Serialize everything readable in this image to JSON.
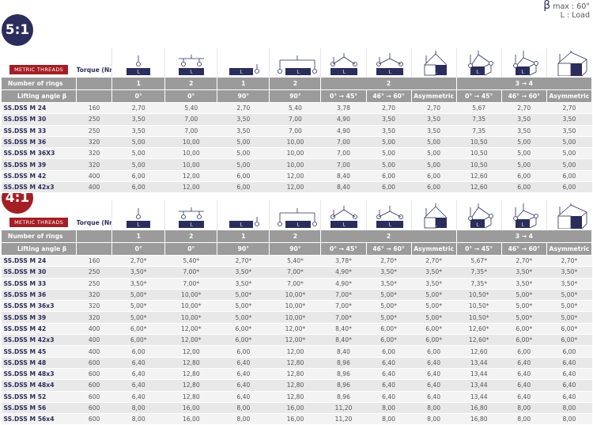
{
  "legend": {
    "beta_symbol": "β",
    "beta_max": "max : 60°",
    "load": "L : Load"
  },
  "colors": {
    "navy": "#2b2d5c",
    "red": "#a31f25",
    "header_gray": "#9b9b9b"
  },
  "icon_names": [
    "single-ring-vertical-icon",
    "two-rings-vertical-icon",
    "single-ring-side-icon",
    "two-rings-side-icon",
    "two-rings-angle-0-45-icon",
    "two-rings-angle-46-60-icon",
    "two-rings-asymmetric-icon",
    "four-rings-angle-0-45-icon",
    "four-rings-angle-46-60-icon",
    "four-rings-asymmetric-icon"
  ],
  "load_label": "L",
  "tables": [
    {
      "ratio": "5:1",
      "threads_label": "METRIC THREADS",
      "torque_label": "Torque (Nm)",
      "rings_label": "Number of rings",
      "angle_label": "Lifting angle β",
      "rings": [
        "1",
        "2",
        "1",
        "2",
        "2",
        "3 → 4"
      ],
      "angles": [
        "0°",
        "0°",
        "90°",
        "90°",
        "0° → 45°",
        "46° → 60°",
        "Asymmetric",
        "0° → 45°",
        "46° → 60°",
        "Asymmetric"
      ],
      "rows": [
        [
          "SS.DSS M 24",
          "160",
          "2,70",
          "5,40",
          "2,70",
          "5,40",
          "3,78",
          "2,70",
          "2,70",
          "5,67",
          "2,70",
          "2,70"
        ],
        [
          "SS.DSS M 30",
          "250",
          "3,50",
          "7,00",
          "3,50",
          "7,00",
          "4,90",
          "3,50",
          "3,50",
          "7,35",
          "3,50",
          "3,50"
        ],
        [
          "SS.DSS M 33",
          "250",
          "3,50",
          "7,00",
          "3,50",
          "7,00",
          "4,90",
          "3,50",
          "3,50",
          "7,35",
          "3,50",
          "3,50"
        ],
        [
          "SS.DSS M 36",
          "320",
          "5,00",
          "10,00",
          "5,00",
          "10,00",
          "7,00",
          "5,00",
          "5,00",
          "10,50",
          "5,00",
          "5,00"
        ],
        [
          "SS.DSS M 36X3",
          "320",
          "5,00",
          "10,00",
          "5,00",
          "10,00",
          "7,00",
          "5,00",
          "5,00",
          "10,50",
          "5,00",
          "5,00"
        ],
        [
          "SS.DSS M 39",
          "320",
          "5,00",
          "10,00",
          "5,00",
          "10,00",
          "7,00",
          "5,00",
          "5,00",
          "10,50",
          "5,00",
          "5,00"
        ],
        [
          "SS.DSS M 42",
          "400",
          "6,00",
          "12,00",
          "6,00",
          "12,00",
          "8,40",
          "6,00",
          "6,00",
          "12,60",
          "6,00",
          "6,00"
        ],
        [
          "SS.DSS M 42x3",
          "400",
          "6,00",
          "12,00",
          "6,00",
          "12,00",
          "8,40",
          "6,00",
          "6,00",
          "12,60",
          "6,00",
          "6,00"
        ]
      ]
    },
    {
      "ratio": "4:1",
      "threads_label": "METRIC THREADS",
      "torque_label": "Torque (Nm)",
      "rings_label": "Number of rings",
      "angle_label": "Lifting angle β",
      "rings": [
        "1",
        "2",
        "1",
        "2",
        "2",
        "3 → 4"
      ],
      "angles": [
        "0°",
        "0°",
        "90°",
        "90°",
        "0° → 45°",
        "46° → 60°",
        "Asymmetric",
        "0° → 45°",
        "46° → 60°",
        "Asymmetric"
      ],
      "rows": [
        [
          "SS.DSS M 24",
          "160",
          "2,70*",
          "5,40*",
          "2,70*",
          "5,40*",
          "3,78*",
          "2,70*",
          "2,70*",
          "5,67*",
          "2,70*",
          "2,70*"
        ],
        [
          "SS.DSS M 30",
          "250",
          "3,50*",
          "7,00*",
          "3,50*",
          "7,00*",
          "4,90*",
          "3,50*",
          "3,50*",
          "7,35*",
          "3,50*",
          "3,50*"
        ],
        [
          "SS.DSS M 33",
          "250",
          "3,50*",
          "7,00*",
          "3,50*",
          "7,00*",
          "4,90*",
          "3,50*",
          "3,50*",
          "7,35*",
          "3,50*",
          "3,50*"
        ],
        [
          "SS.DSS M 36",
          "320",
          "5,00*",
          "10,00*",
          "5,00*",
          "10,00*",
          "7,00*",
          "5,00*",
          "5,00*",
          "10,50*",
          "5,00*",
          "5,00*"
        ],
        [
          "SS.DSS M 36x3",
          "320",
          "5,00*",
          "10,00*",
          "5,00*",
          "10,00*",
          "7,00*",
          "5,00*",
          "5,00*",
          "10,50*",
          "5,00*",
          "5,00*"
        ],
        [
          "SS.DSS M 39",
          "320",
          "5,00*",
          "10,00*",
          "5,00*",
          "10,00*",
          "7,00*",
          "5,00*",
          "5,00*",
          "10,50*",
          "5,00*",
          "5,00*"
        ],
        [
          "SS.DSS M 42",
          "400",
          "6,00*",
          "12,00*",
          "6,00*",
          "12,00*",
          "8,40*",
          "6,00*",
          "6,00*",
          "12,60*",
          "6,00*",
          "6,00*"
        ],
        [
          "SS.DSS M 42x3",
          "400",
          "6,00*",
          "12,00*",
          "6,00*",
          "12,00*",
          "8,40*",
          "6,00*",
          "6,00*",
          "12,60*",
          "6,00*",
          "6,00*"
        ],
        [
          "SS.DSS M 45",
          "400",
          "6,00",
          "12,00",
          "6,00",
          "12,00",
          "8,40",
          "6,00",
          "6,00",
          "12,60",
          "6,00",
          "6,00"
        ],
        [
          "SS.DSS M 48",
          "600",
          "6,40",
          "12,80",
          "6,40",
          "12,80",
          "8,96",
          "6,40",
          "6,40",
          "13,44",
          "6,40",
          "6,40"
        ],
        [
          "SS.DSS M 48x3",
          "600",
          "6,40",
          "12,80",
          "6,40",
          "12,80",
          "8,96",
          "6,40",
          "6,40",
          "13,44",
          "6,40",
          "6,40"
        ],
        [
          "SS.DSS M 48x4",
          "600",
          "6,40",
          "12,80",
          "6,40",
          "12,80",
          "8,96",
          "6,40",
          "6,40",
          "13,44",
          "6,40",
          "6,40"
        ],
        [
          "SS.DSS M 52",
          "600",
          "6,40",
          "12,80",
          "6,40",
          "12,80",
          "8,96",
          "6,40",
          "6,40",
          "13,44",
          "6,40",
          "6,40"
        ],
        [
          "SS.DSS M 56",
          "600",
          "8,00",
          "16,00",
          "8,00",
          "16,00",
          "11,20",
          "8,00",
          "8,00",
          "16,80",
          "8,00",
          "8,00"
        ],
        [
          "SS.DSS M 56x4",
          "600",
          "8,00",
          "16,00",
          "8,00",
          "16,00",
          "11,20",
          "8,00",
          "8,00",
          "16,80",
          "8,00",
          "8,00"
        ]
      ]
    }
  ]
}
